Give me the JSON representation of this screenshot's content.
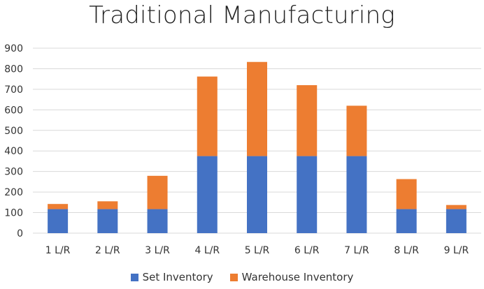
{
  "chart_data": {
    "type": "bar",
    "stacked": true,
    "title": "Traditional Manufacturing",
    "xlabel": "",
    "ylabel": "",
    "categories": [
      "1 L/R",
      "2 L/R",
      "3 L/R",
      "4 L/R",
      "5 L/R",
      "6 L/R",
      "7 L/R",
      "8 L/R",
      "9 L/R"
    ],
    "series": [
      {
        "name": "Set Inventory",
        "color": "#4472C4",
        "values": [
          117,
          117,
          117,
          375,
          375,
          375,
          375,
          117,
          117
        ]
      },
      {
        "name": "Warehouse Inventory",
        "color": "#ED7D31",
        "values": [
          25,
          38,
          162,
          387,
          458,
          345,
          245,
          146,
          20
        ]
      }
    ],
    "ylim": [
      0,
      900
    ],
    "yticks": [
      0,
      100,
      200,
      300,
      400,
      500,
      600,
      700,
      800,
      900
    ],
    "grid": true,
    "legend": "bottom-center"
  }
}
